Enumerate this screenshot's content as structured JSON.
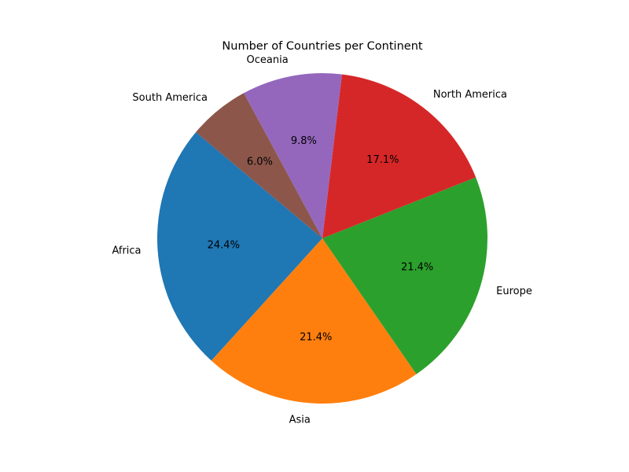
{
  "chart_data": {
    "type": "pie",
    "title": "Number of Countries per Continent",
    "slices": [
      {
        "label": "Africa",
        "value": 24.4,
        "pct_label": "24.4%",
        "color": "#1f77b4"
      },
      {
        "label": "Asia",
        "value": 21.4,
        "pct_label": "21.4%",
        "color": "#ff7f0e"
      },
      {
        "label": "Europe",
        "value": 21.4,
        "pct_label": "21.4%",
        "color": "#2ca02c"
      },
      {
        "label": "North America",
        "value": 17.1,
        "pct_label": "17.1%",
        "color": "#d62728"
      },
      {
        "label": "Oceania",
        "value": 9.8,
        "pct_label": "9.8%",
        "color": "#9467bd"
      },
      {
        "label": "South America",
        "value": 6.0,
        "pct_label": "6.0%",
        "color": "#8c564b"
      }
    ],
    "start_angle_deg": 140,
    "direction": "counterclockwise",
    "legend": "none"
  }
}
